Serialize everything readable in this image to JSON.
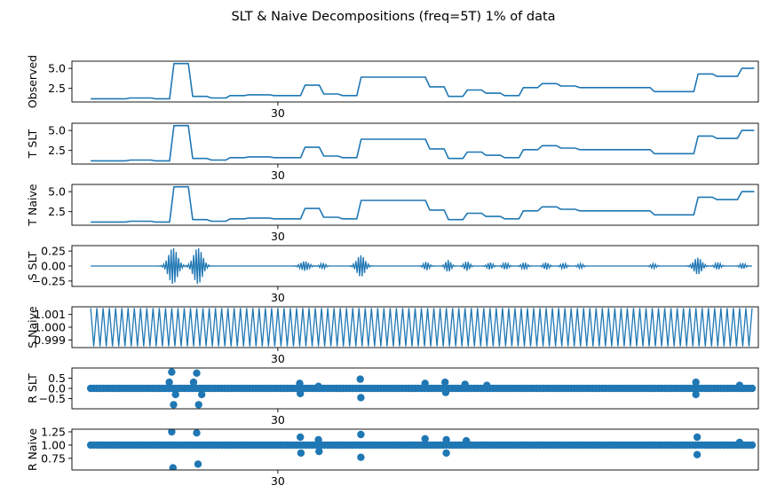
{
  "figure": {
    "title": "SLT & Naive Decompositions (freq=5T) 1% of data"
  },
  "chart_data": [
    {
      "type": "line",
      "ylabel": "Observed",
      "ylim": [
        0.8,
        5.9
      ],
      "yticks": [
        "2.5",
        "5.0"
      ],
      "ytick_values": [
        2.5,
        5.0
      ],
      "xlim": [
        -3,
        107
      ],
      "xticks": [
        "30"
      ],
      "xtick_values": [
        30
      ],
      "steps": [
        [
          0,
          1.2
        ],
        [
          6,
          1.3
        ],
        [
          10,
          1.2
        ],
        [
          13,
          5.6
        ],
        [
          16,
          1.5
        ],
        [
          19,
          1.3
        ],
        [
          22,
          1.6
        ],
        [
          25,
          1.7
        ],
        [
          29,
          1.6
        ],
        [
          34,
          2.9
        ],
        [
          37,
          1.8
        ],
        [
          40,
          1.6
        ],
        [
          43,
          3.9
        ],
        [
          54,
          2.7
        ],
        [
          57,
          1.5
        ],
        [
          60,
          2.3
        ],
        [
          63,
          1.9
        ],
        [
          66,
          1.6
        ],
        [
          69,
          2.6
        ],
        [
          72,
          3.1
        ],
        [
          75,
          2.8
        ],
        [
          78,
          2.6
        ],
        [
          90,
          2.1
        ],
        [
          97,
          4.3
        ],
        [
          100,
          4.0
        ],
        [
          104,
          5.0
        ],
        [
          106,
          5.0
        ]
      ]
    },
    {
      "type": "line",
      "ylabel": "T SLT",
      "ylim": [
        0.8,
        5.9
      ],
      "yticks": [
        "2.5",
        "5.0"
      ],
      "ytick_values": [
        2.5,
        5.0
      ],
      "xlim": [
        -3,
        107
      ],
      "xticks": [
        "30"
      ],
      "xtick_values": [
        30
      ],
      "steps": [
        [
          0,
          1.2
        ],
        [
          6,
          1.3
        ],
        [
          10,
          1.2
        ],
        [
          13,
          5.6
        ],
        [
          16,
          1.5
        ],
        [
          19,
          1.3
        ],
        [
          22,
          1.6
        ],
        [
          25,
          1.7
        ],
        [
          29,
          1.6
        ],
        [
          34,
          2.9
        ],
        [
          37,
          1.8
        ],
        [
          40,
          1.6
        ],
        [
          43,
          3.9
        ],
        [
          54,
          2.7
        ],
        [
          57,
          1.5
        ],
        [
          60,
          2.3
        ],
        [
          63,
          1.9
        ],
        [
          66,
          1.6
        ],
        [
          69,
          2.6
        ],
        [
          72,
          3.1
        ],
        [
          75,
          2.8
        ],
        [
          78,
          2.6
        ],
        [
          90,
          2.1
        ],
        [
          97,
          4.3
        ],
        [
          100,
          4.0
        ],
        [
          104,
          5.0
        ],
        [
          106,
          5.0
        ]
      ]
    },
    {
      "type": "line",
      "ylabel": "T Naive",
      "ylim": [
        0.8,
        5.9
      ],
      "yticks": [
        "2.5",
        "5.0"
      ],
      "ytick_values": [
        2.5,
        5.0
      ],
      "xlim": [
        -3,
        107
      ],
      "xticks": [
        "30"
      ],
      "xtick_values": [
        30
      ],
      "steps": [
        [
          0,
          1.2
        ],
        [
          6,
          1.3
        ],
        [
          10,
          1.2
        ],
        [
          13,
          5.6
        ],
        [
          16,
          1.5
        ],
        [
          19,
          1.3
        ],
        [
          22,
          1.6
        ],
        [
          25,
          1.7
        ],
        [
          29,
          1.6
        ],
        [
          34,
          2.9
        ],
        [
          37,
          1.8
        ],
        [
          40,
          1.6
        ],
        [
          43,
          3.9
        ],
        [
          54,
          2.7
        ],
        [
          57,
          1.5
        ],
        [
          60,
          2.3
        ],
        [
          63,
          1.9
        ],
        [
          66,
          1.6
        ],
        [
          69,
          2.6
        ],
        [
          72,
          3.1
        ],
        [
          75,
          2.8
        ],
        [
          78,
          2.6
        ],
        [
          90,
          2.1
        ],
        [
          97,
          4.3
        ],
        [
          100,
          4.0
        ],
        [
          104,
          5.0
        ],
        [
          106,
          5.0
        ]
      ]
    },
    {
      "type": "line",
      "ylabel": "S SLT",
      "ylim": [
        -0.34,
        0.34
      ],
      "yticks": [
        "0.25",
        "0.00",
        "−0.25"
      ],
      "ytick_values": [
        0.25,
        0.0,
        -0.25
      ],
      "xlim": [
        -3,
        107
      ],
      "xticks": [
        "30"
      ],
      "xtick_values": [
        30
      ],
      "bursts": [
        [
          13.2,
          1.0,
          0.3
        ],
        [
          17.2,
          1.0,
          0.3
        ],
        [
          34.3,
          0.9,
          0.08
        ],
        [
          37.2,
          0.6,
          0.05
        ],
        [
          43.3,
          0.9,
          0.18
        ],
        [
          53.8,
          0.6,
          0.07
        ],
        [
          57.3,
          0.6,
          0.1
        ],
        [
          60.3,
          0.6,
          0.08
        ],
        [
          64.0,
          0.6,
          0.06
        ],
        [
          66.5,
          0.6,
          0.06
        ],
        [
          69.5,
          0.6,
          0.06
        ],
        [
          73.0,
          0.6,
          0.06
        ],
        [
          75.8,
          0.6,
          0.05
        ],
        [
          78.5,
          0.6,
          0.04
        ],
        [
          90.2,
          0.6,
          0.04
        ],
        [
          97.3,
          0.9,
          0.14
        ],
        [
          100.5,
          0.6,
          0.06
        ],
        [
          104.5,
          0.6,
          0.05
        ]
      ]
    },
    {
      "type": "line",
      "ylabel": "S Naive",
      "ylim": [
        0.9984,
        1.0016
      ],
      "yticks": [
        "1.001",
        "1.000",
        "0.999"
      ],
      "ytick_values": [
        1.001,
        1.0,
        0.999
      ],
      "xlim": [
        -3,
        107
      ],
      "xticks": [
        "30"
      ],
      "xtick_values": [
        30
      ],
      "oscillation": {
        "center": 1.0,
        "amplitude": 0.0015,
        "cycles_per_unit": 1.0,
        "x_start": 0,
        "x_end": 106
      }
    },
    {
      "type": "scatter",
      "ylabel": "R SLT",
      "ylim": [
        -1.0,
        1.0
      ],
      "yticks": [
        "0.5",
        "0.0",
        "−0.5"
      ],
      "ytick_values": [
        0.5,
        0.0,
        -0.5
      ],
      "xlim": [
        -3,
        107
      ],
      "xticks": [
        "30"
      ],
      "xtick_values": [
        30
      ],
      "outliers": [
        [
          13.0,
          0.8
        ],
        [
          13.3,
          -0.8
        ],
        [
          12.6,
          0.3
        ],
        [
          13.6,
          -0.3
        ],
        [
          17.0,
          0.75
        ],
        [
          17.3,
          -0.8
        ],
        [
          16.5,
          0.3
        ],
        [
          17.8,
          -0.3
        ],
        [
          33.5,
          0.25
        ],
        [
          33.6,
          -0.25
        ],
        [
          36.5,
          0.1
        ],
        [
          43.2,
          0.45
        ],
        [
          43.3,
          -0.45
        ],
        [
          53.6,
          0.25
        ],
        [
          56.8,
          0.3
        ],
        [
          56.9,
          -0.2
        ],
        [
          60.0,
          0.2
        ],
        [
          63.5,
          0.15
        ],
        [
          97.0,
          0.3
        ],
        [
          97.0,
          -0.3
        ],
        [
          104.0,
          0.15
        ]
      ]
    },
    {
      "type": "scatter",
      "ylabel": "R Naive",
      "ylim": [
        0.53,
        1.3
      ],
      "yticks": [
        "1.25",
        "1.00",
        "0.75"
      ],
      "ytick_values": [
        1.25,
        1.0,
        0.75
      ],
      "xlim": [
        -3,
        107
      ],
      "xticks": [
        "30"
      ],
      "xtick_values": [
        30
      ],
      "outliers": [
        [
          13.0,
          1.25
        ],
        [
          13.2,
          0.57
        ],
        [
          17.0,
          1.23
        ],
        [
          17.2,
          0.64
        ],
        [
          33.6,
          1.15
        ],
        [
          33.7,
          0.85
        ],
        [
          36.5,
          1.1
        ],
        [
          36.6,
          0.88
        ],
        [
          43.3,
          1.2
        ],
        [
          43.3,
          0.77
        ],
        [
          53.6,
          1.12
        ],
        [
          57.0,
          1.1
        ],
        [
          57.0,
          0.85
        ],
        [
          60.2,
          1.08
        ],
        [
          97.2,
          1.15
        ],
        [
          97.2,
          0.82
        ],
        [
          104.0,
          1.05
        ]
      ]
    }
  ]
}
